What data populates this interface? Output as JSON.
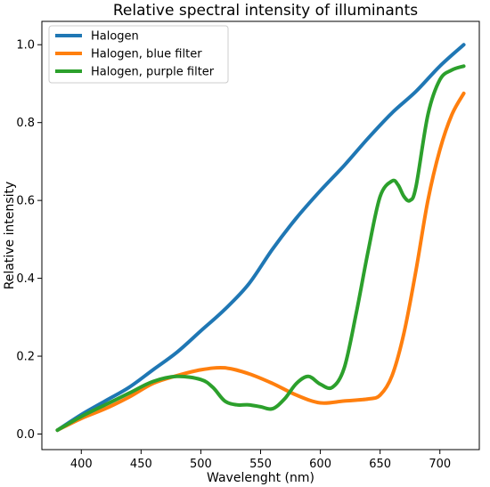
{
  "chart_data": {
    "type": "line",
    "title": "Relative spectral intensity of illuminants",
    "xlabel": "Wavelenght (nm)",
    "ylabel": "Relative intensity",
    "xlim": [
      367,
      733
    ],
    "ylim": [
      -0.04,
      1.06
    ],
    "xticks": [
      400,
      450,
      500,
      550,
      600,
      650,
      700
    ],
    "yticks": [
      0.0,
      0.2,
      0.4,
      0.6,
      0.8,
      1.0
    ],
    "ytick_labels": [
      "0.0",
      "0.2",
      "0.4",
      "0.6",
      "0.8",
      "1.0"
    ],
    "grid": false,
    "legend_position": "top-left",
    "series": [
      {
        "name": "Halogen",
        "color": "#1f77b4",
        "x": [
          380,
          400,
          420,
          440,
          460,
          480,
          500,
          520,
          540,
          560,
          580,
          600,
          620,
          640,
          660,
          680,
          700,
          720
        ],
        "y": [
          0.01,
          0.05,
          0.085,
          0.12,
          0.165,
          0.21,
          0.265,
          0.32,
          0.385,
          0.475,
          0.555,
          0.625,
          0.69,
          0.76,
          0.825,
          0.88,
          0.945,
          1.0
        ]
      },
      {
        "name": "Halogen, blue filter",
        "color": "#ff7f0e",
        "x": [
          380,
          400,
          420,
          440,
          460,
          480,
          500,
          520,
          540,
          560,
          580,
          600,
          620,
          640,
          650,
          660,
          670,
          680,
          690,
          700,
          710,
          720
        ],
        "y": [
          0.01,
          0.04,
          0.065,
          0.095,
          0.13,
          0.15,
          0.165,
          0.17,
          0.155,
          0.13,
          0.1,
          0.08,
          0.085,
          0.09,
          0.1,
          0.15,
          0.26,
          0.42,
          0.6,
          0.73,
          0.82,
          0.875
        ]
      },
      {
        "name": "Halogen, purple filter",
        "color": "#2ca02c",
        "x": [
          380,
          400,
          420,
          440,
          460,
          480,
          500,
          510,
          520,
          530,
          540,
          550,
          560,
          570,
          580,
          590,
          600,
          610,
          620,
          630,
          640,
          650,
          660,
          665,
          670,
          675,
          680,
          690,
          700,
          710,
          720
        ],
        "y": [
          0.01,
          0.045,
          0.075,
          0.105,
          0.135,
          0.148,
          0.14,
          0.12,
          0.085,
          0.075,
          0.075,
          0.07,
          0.065,
          0.09,
          0.13,
          0.148,
          0.128,
          0.12,
          0.17,
          0.31,
          0.47,
          0.61,
          0.65,
          0.64,
          0.61,
          0.6,
          0.635,
          0.82,
          0.91,
          0.935,
          0.945
        ]
      }
    ]
  }
}
